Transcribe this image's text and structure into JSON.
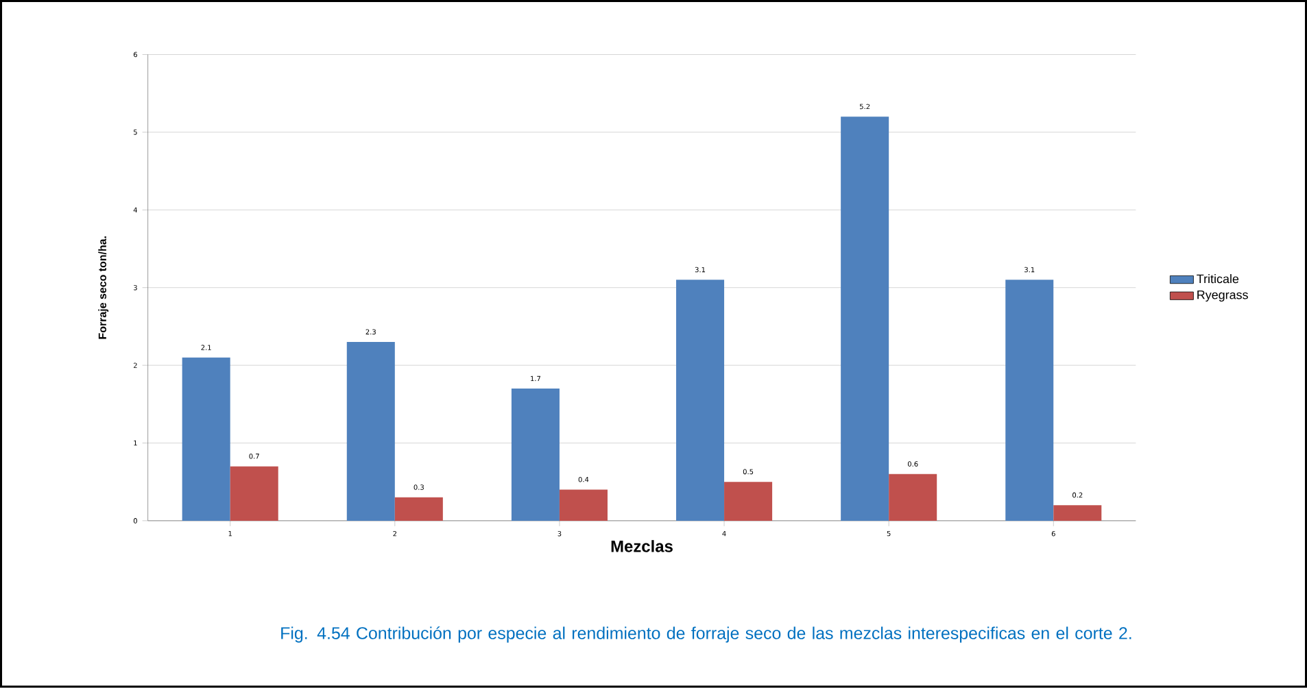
{
  "chart_data": {
    "type": "bar",
    "xlabel": "Mezclas",
    "ylabel": "Forraje seco ton/ha.",
    "categories": [
      "1",
      "2",
      "3",
      "4",
      "5",
      "6"
    ],
    "series": [
      {
        "name": "Triticale",
        "color": "#4f81bd",
        "values": [
          2.1,
          2.3,
          1.7,
          3.1,
          5.2,
          3.1
        ]
      },
      {
        "name": "Ryegrass",
        "color": "#c0504d",
        "values": [
          0.7,
          0.3,
          0.4,
          0.5,
          0.6,
          0.2
        ]
      }
    ],
    "ylim": [
      0,
      6
    ],
    "yticks": [
      0,
      1,
      2,
      3,
      4,
      5,
      6
    ],
    "grid": "y",
    "legend": "right",
    "data_labels": true,
    "annotations": [
      "Fig. 4.54 Contribución por especie al rendimiento de forraje seco de las mezclas interespecificas en el corte 2."
    ]
  }
}
